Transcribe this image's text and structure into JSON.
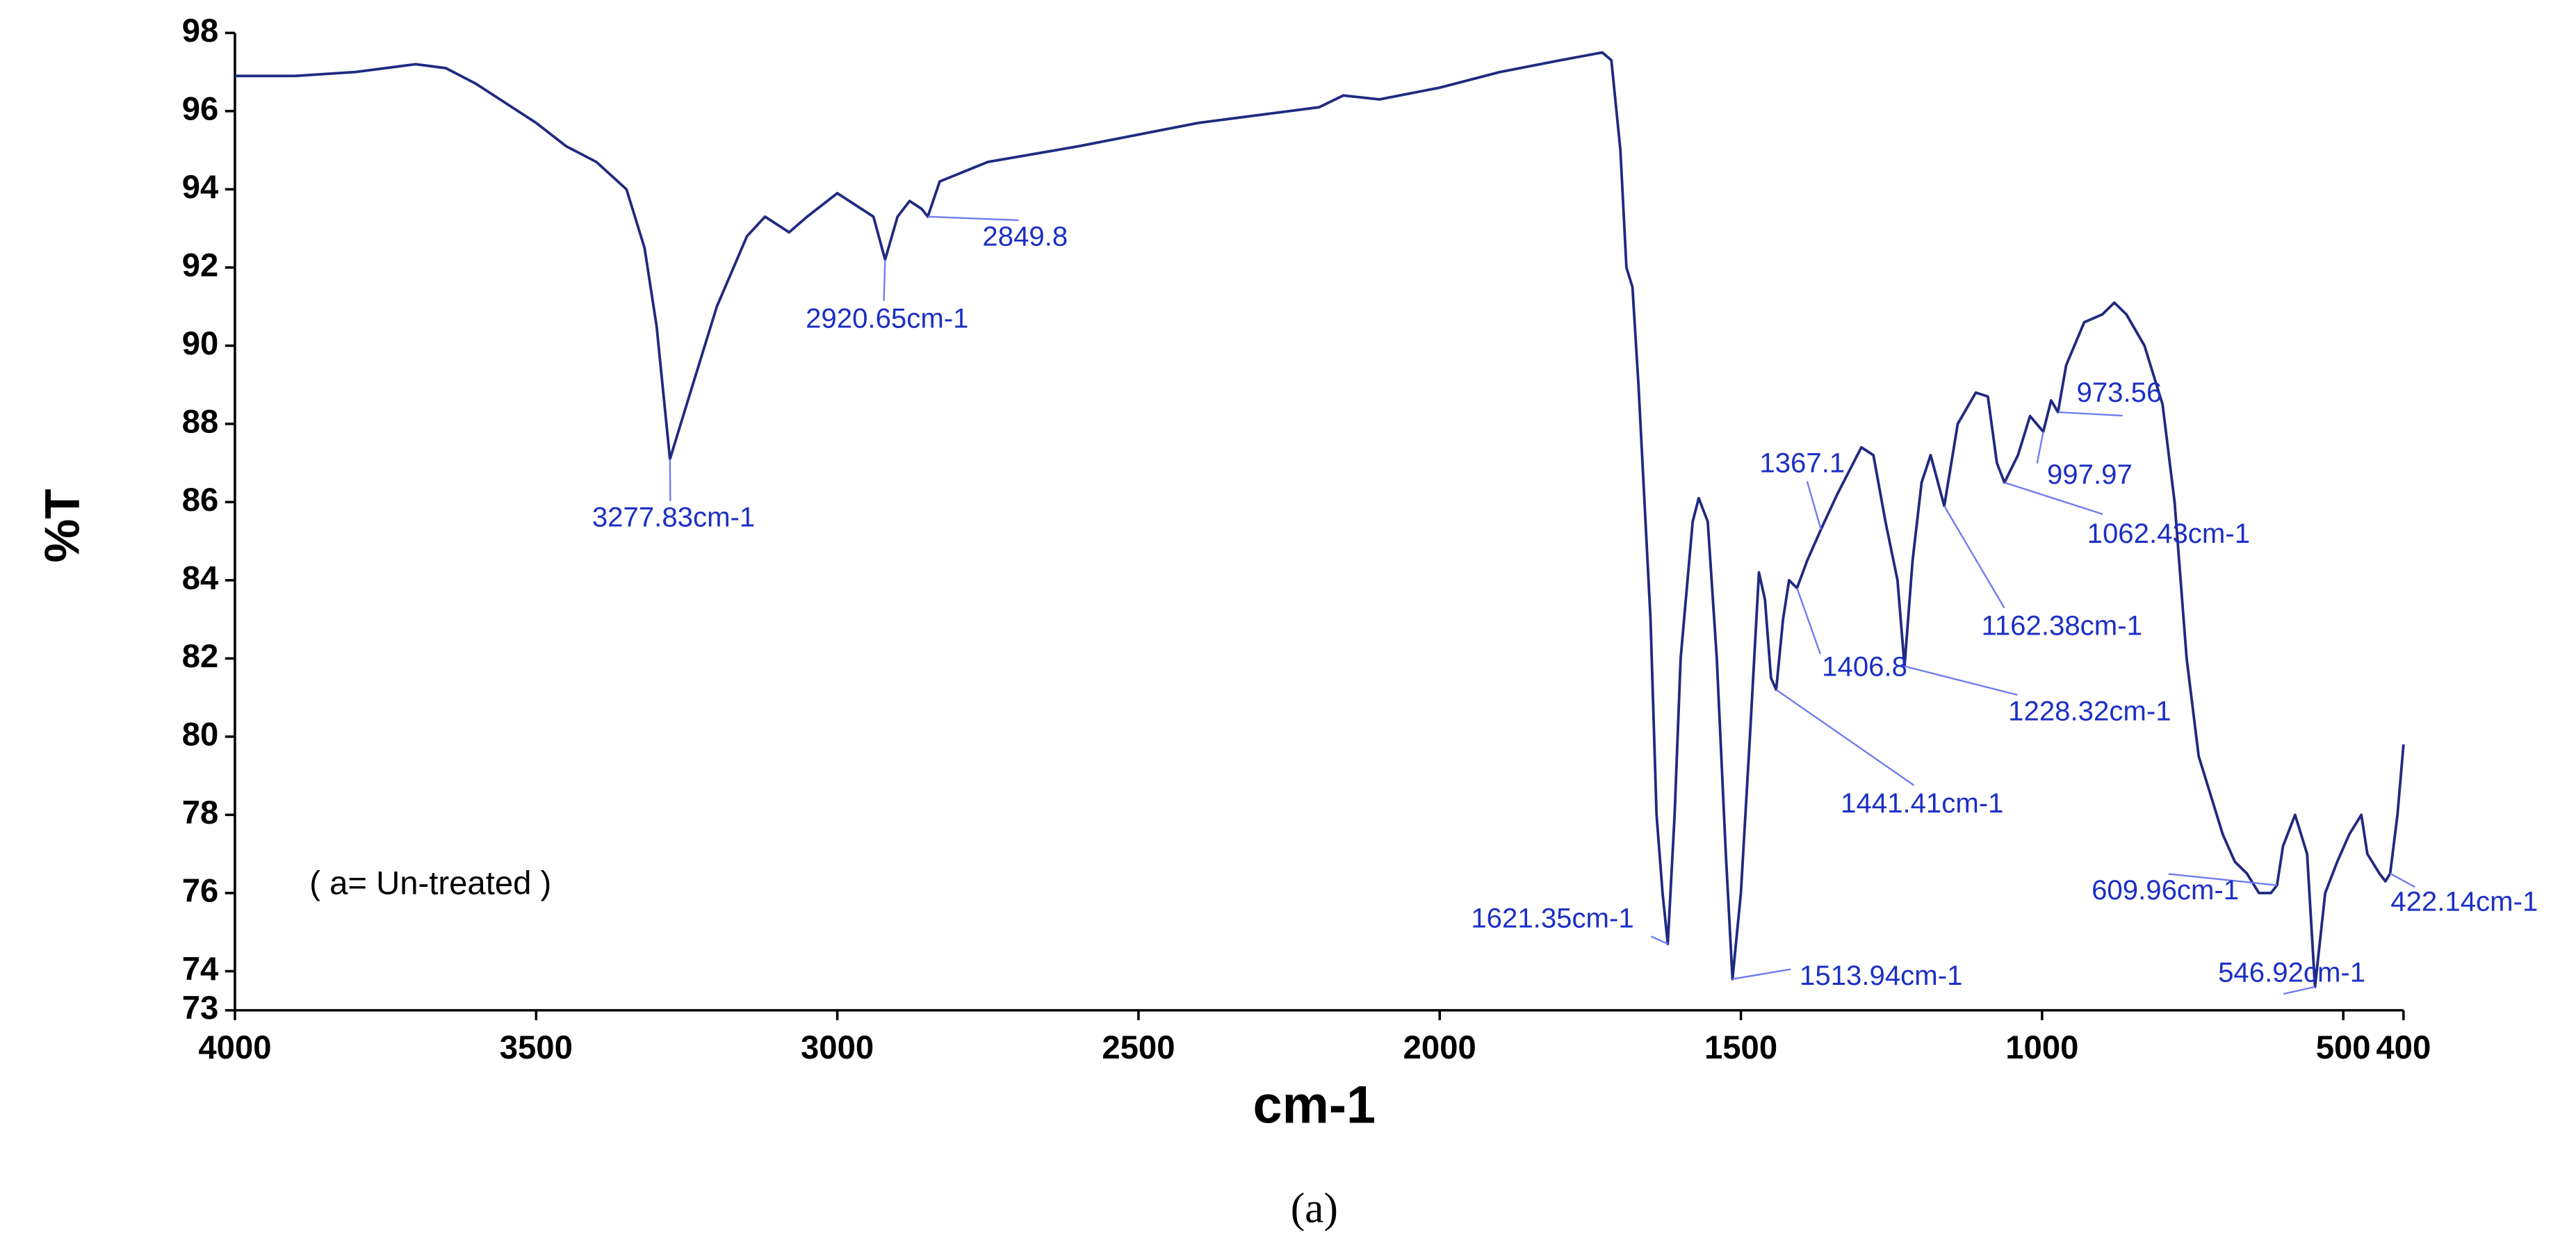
{
  "chart_data": {
    "type": "line",
    "xlabel": "cm-1",
    "ylabel": "%T",
    "caption": "(a)",
    "note": "( a= Un-treated )",
    "xlim": [
      4000,
      400
    ],
    "ylim": [
      73,
      98
    ],
    "xticks": [
      4000,
      3500,
      3000,
      2500,
      2000,
      1500,
      1000,
      500,
      400
    ],
    "yticks": [
      98,
      96,
      94,
      92,
      90,
      88,
      86,
      84,
      82,
      80,
      78,
      76,
      74,
      73
    ],
    "color": "#1f2a80",
    "x": [
      4000,
      3900,
      3800,
      3700,
      3650,
      3600,
      3500,
      3450,
      3400,
      3350,
      3320,
      3300,
      3277.83,
      3250,
      3200,
      3150,
      3120,
      3080,
      3050,
      3000,
      2970,
      2940,
      2920.65,
      2900,
      2880,
      2860,
      2849.8,
      2830,
      2750,
      2600,
      2500,
      2400,
      2300,
      2200,
      2160,
      2100,
      2000,
      1900,
      1800,
      1730,
      1715,
      1700,
      1690,
      1680,
      1670,
      1650,
      1640,
      1630,
      1621.35,
      1610,
      1600,
      1580,
      1570,
      1555,
      1540,
      1525,
      1513.94,
      1500,
      1485,
      1470,
      1460,
      1450,
      1441.41,
      1430,
      1420,
      1406.8,
      1390,
      1367.1,
      1340,
      1300,
      1280,
      1260,
      1240,
      1228.32,
      1215,
      1200,
      1185,
      1162.38,
      1140,
      1110,
      1090,
      1075,
      1062.43,
      1040,
      1020,
      997.97,
      985,
      973.56,
      960,
      930,
      900,
      880,
      860,
      830,
      800,
      780,
      760,
      740,
      720,
      700,
      680,
      660,
      640,
      620,
      609.96,
      600,
      580,
      560,
      546.92,
      530,
      510,
      490,
      470,
      460,
      440,
      430,
      422.14,
      410,
      400
    ],
    "values": [
      96.9,
      96.9,
      97.0,
      97.2,
      97.1,
      96.7,
      95.7,
      95.1,
      94.7,
      94.0,
      92.5,
      90.5,
      87.1,
      88.5,
      91.0,
      92.8,
      93.3,
      92.9,
      93.3,
      93.9,
      93.6,
      93.3,
      92.2,
      93.3,
      93.7,
      93.5,
      93.3,
      94.2,
      94.7,
      95.1,
      95.4,
      95.7,
      95.9,
      96.1,
      96.4,
      96.3,
      96.6,
      97.0,
      97.3,
      97.5,
      97.3,
      95.0,
      92.0,
      91.5,
      89.0,
      83.0,
      78.0,
      76.0,
      74.7,
      78.0,
      82.0,
      85.5,
      86.1,
      85.5,
      82.0,
      77.0,
      73.8,
      76.0,
      80.0,
      84.2,
      83.5,
      81.5,
      81.2,
      83.0,
      84.0,
      83.8,
      84.5,
      85.3,
      86.2,
      87.4,
      87.2,
      85.5,
      84.0,
      81.8,
      84.5,
      86.5,
      87.2,
      85.9,
      88.0,
      88.8,
      88.7,
      87.0,
      86.5,
      87.2,
      88.2,
      87.8,
      88.6,
      88.3,
      89.5,
      90.6,
      90.8,
      91.1,
      90.8,
      90.0,
      88.5,
      86.0,
      82.0,
      79.5,
      78.5,
      77.5,
      76.8,
      76.5,
      76.0,
      76.0,
      76.2,
      77.2,
      78.0,
      77.0,
      73.6,
      76.0,
      76.8,
      77.5,
      78.0,
      77.0,
      76.5,
      76.3,
      76.5,
      78.0,
      79.8
    ],
    "annotations": [
      {
        "text": "3277.83cm-1",
        "x": 3277.83,
        "y": 87.1
      },
      {
        "text": "2920.65cm-1",
        "x": 2920.65,
        "y": 92.2
      },
      {
        "text": "2849.8",
        "x": 2849.8,
        "y": 93.3
      },
      {
        "text": "1367.1",
        "x": 1367.1,
        "y": 85.3
      },
      {
        "text": "1406.8",
        "x": 1406.8,
        "y": 83.8
      },
      {
        "text": "1441.41cm-1",
        "x": 1441.41,
        "y": 81.2
      },
      {
        "text": "1513.94cm-1",
        "x": 1513.94,
        "y": 73.8
      },
      {
        "text": "1621.35cm-1",
        "x": 1621.35,
        "y": 74.7
      },
      {
        "text": "1228.32cm-1",
        "x": 1228.32,
        "y": 81.8
      },
      {
        "text": "1162.38cm-1",
        "x": 1162.38,
        "y": 85.9
      },
      {
        "text": "1062.43cm-1",
        "x": 1062.43,
        "y": 86.5
      },
      {
        "text": "997.97",
        "x": 997.97,
        "y": 87.8
      },
      {
        "text": "973.56",
        "x": 973.56,
        "y": 88.3
      },
      {
        "text": "609.96cm-1",
        "x": 609.96,
        "y": 76.2
      },
      {
        "text": "546.92cm-1",
        "x": 546.92,
        "y": 73.6
      },
      {
        "text": "422.14cm-1",
        "x": 422.14,
        "y": 76.5
      }
    ]
  }
}
